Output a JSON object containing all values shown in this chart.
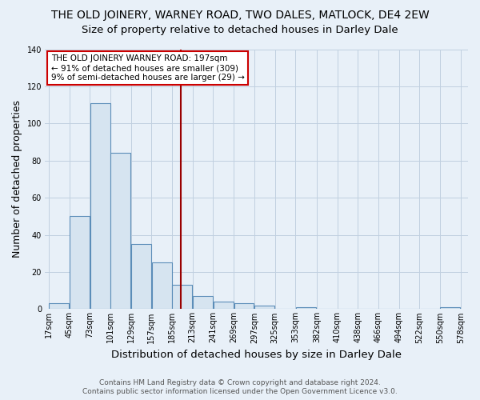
{
  "title": "THE OLD JOINERY, WARNEY ROAD, TWO DALES, MATLOCK, DE4 2EW",
  "subtitle": "Size of property relative to detached houses in Darley Dale",
  "xlabel": "Distribution of detached houses by size in Darley Dale",
  "ylabel": "Number of detached properties",
  "bar_color": "#d6e4f0",
  "bar_edge_color": "#5b8db8",
  "background_color": "#e8f0f8",
  "grid_color": "#c0cfe0",
  "bin_edges": [
    17,
    45,
    73,
    101,
    129,
    157,
    185,
    213,
    241,
    269,
    297,
    325,
    353,
    382,
    410,
    438,
    466,
    494,
    522,
    550,
    578
  ],
  "bin_labels": [
    "17sqm",
    "45sqm",
    "73sqm",
    "101sqm",
    "129sqm",
    "157sqm",
    "185sqm",
    "213sqm",
    "241sqm",
    "269sqm",
    "297sqm",
    "325sqm",
    "353sqm",
    "382sqm",
    "410sqm",
    "438sqm",
    "466sqm",
    "494sqm",
    "522sqm",
    "550sqm",
    "578sqm"
  ],
  "counts": [
    3,
    50,
    111,
    84,
    35,
    25,
    13,
    7,
    4,
    3,
    2,
    0,
    1,
    0,
    0,
    0,
    0,
    0,
    0,
    1
  ],
  "ylim": [
    0,
    140
  ],
  "yticks": [
    0,
    20,
    40,
    60,
    80,
    100,
    120,
    140
  ],
  "property_size": 197,
  "vline_color": "#990000",
  "annotation_text_line1": "THE OLD JOINERY WARNEY ROAD: 197sqm",
  "annotation_text_line2": "← 91% of detached houses are smaller (309)",
  "annotation_text_line3": "9% of semi-detached houses are larger (29) →",
  "annotation_box_color": "#ffffff",
  "annotation_border_color": "#cc0000",
  "footer_line1": "Contains HM Land Registry data © Crown copyright and database right 2024.",
  "footer_line2": "Contains public sector information licensed under the Open Government Licence v3.0.",
  "title_fontsize": 10,
  "subtitle_fontsize": 9.5,
  "axis_label_fontsize": 9,
  "tick_fontsize": 7,
  "annotation_fontsize": 7.5,
  "footer_fontsize": 6.5
}
